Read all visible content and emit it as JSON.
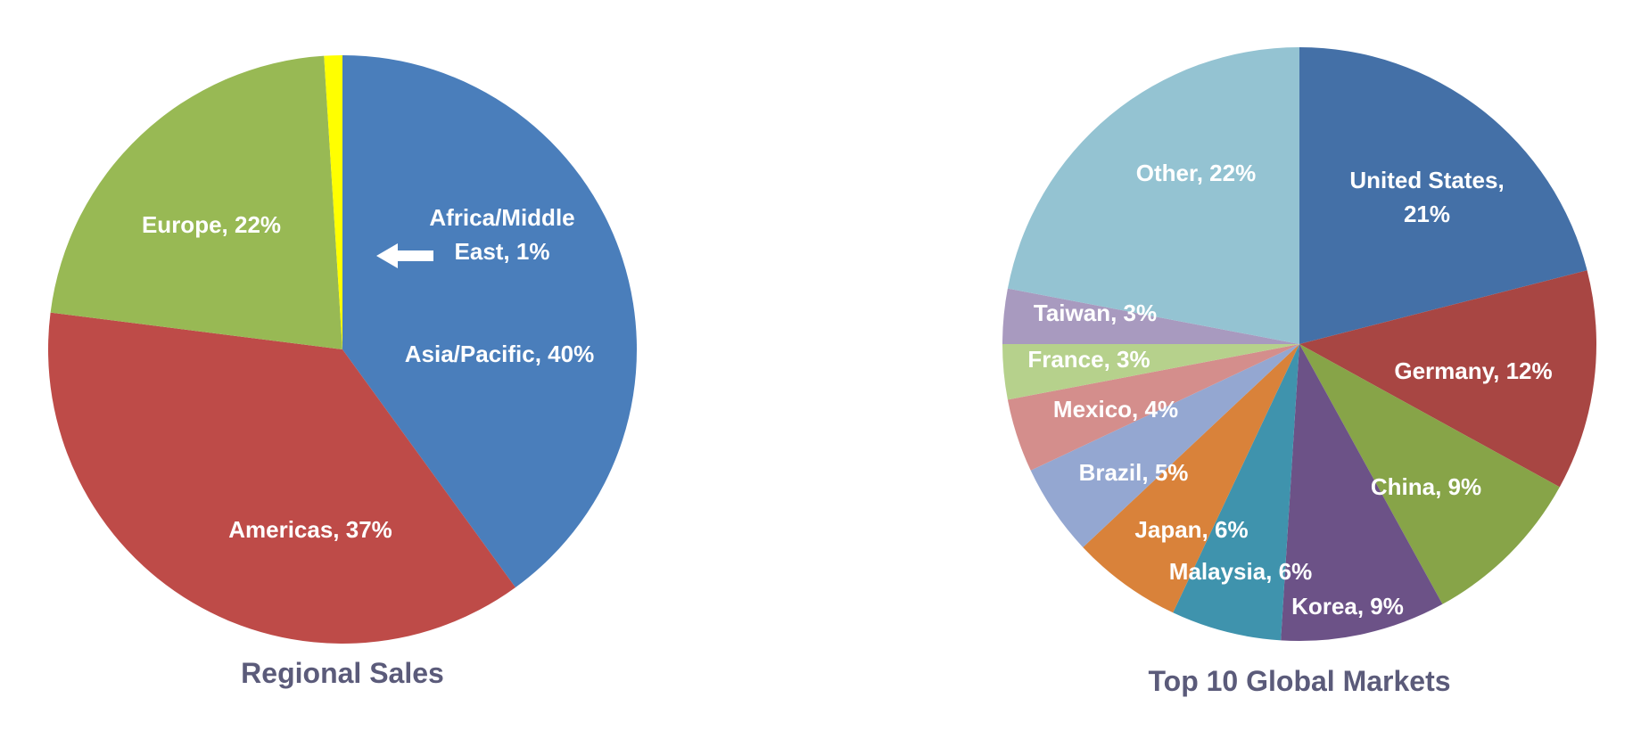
{
  "chart_data": [
    {
      "type": "pie",
      "title": "Regional Sales",
      "slices": [
        {
          "label": "Asia/Pacific",
          "value": 40,
          "display": "Asia/Pacific, 40%",
          "color": "#4a7ebb"
        },
        {
          "label": "Americas",
          "value": 37,
          "display": "Americas, 37%",
          "color": "#be4b48"
        },
        {
          "label": "Europe",
          "value": 22,
          "display": "Europe, 22%",
          "color": "#98b954"
        },
        {
          "label": "Africa/Middle East",
          "value": 1,
          "display": "Africa/Middle East, 1%",
          "color": "#ffff00"
        }
      ]
    },
    {
      "type": "pie",
      "title": "Top 10 Global Markets",
      "slices": [
        {
          "label": "United States",
          "value": 21,
          "display": "United States, 21%",
          "color": "#4470a7"
        },
        {
          "label": "Germany",
          "value": 12,
          "display": "Germany, 12%",
          "color": "#a84643"
        },
        {
          "label": "China",
          "value": 9,
          "display": "China, 9%",
          "color": "#87a448"
        },
        {
          "label": "Korea",
          "value": 9,
          "display": "Korea, 9%",
          "color": "#6c5287"
        },
        {
          "label": "Malaysia",
          "value": 6,
          "display": "Malaysia, 6%",
          "color": "#3f93ad"
        },
        {
          "label": "Japan",
          "value": 6,
          "display": "Japan, 6%",
          "color": "#d9823a"
        },
        {
          "label": "Brazil",
          "value": 5,
          "display": "Brazil, 5%",
          "color": "#94a7d1"
        },
        {
          "label": "Mexico",
          "value": 4,
          "display": "Mexico, 4%",
          "color": "#d48e8c"
        },
        {
          "label": "France",
          "value": 3,
          "display": "France, 3%",
          "color": "#b6d18c"
        },
        {
          "label": "Taiwan",
          "value": 3,
          "display": "Taiwan, 3%",
          "color": "#a89abf"
        },
        {
          "label": "Other",
          "value": 22,
          "display": "Other, 22%",
          "color": "#94c3d2"
        }
      ]
    }
  ]
}
